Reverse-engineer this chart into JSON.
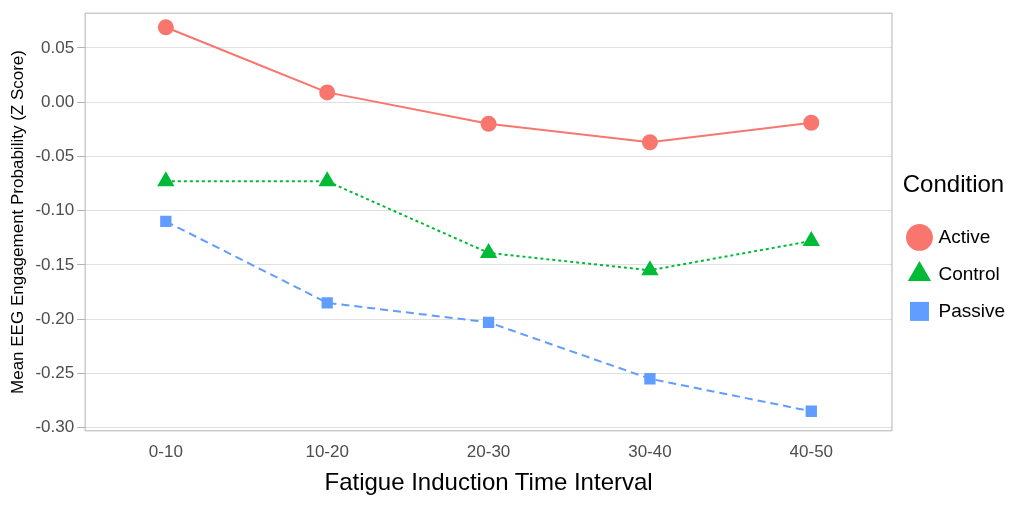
{
  "chart_data": {
    "type": "line",
    "xlabel": "Fatigue Induction Time Interval",
    "ylabel": "Mean EEG Engagement Probability (Z Score)",
    "legend_title": "Condition",
    "categories": [
      "0-10",
      "10-20",
      "20-30",
      "30-40",
      "40-50"
    ],
    "series": [
      {
        "name": "Active",
        "color": "#f8766d",
        "values": [
          0.069,
          0.009,
          -0.02,
          -0.037,
          -0.019
        ],
        "marker": "circle",
        "line_style": "solid"
      },
      {
        "name": "Control",
        "color": "#00ba38",
        "values": [
          -0.073,
          -0.073,
          -0.139,
          -0.155,
          -0.128
        ],
        "marker": "triangle",
        "line_style": "dotted"
      },
      {
        "name": "Passive",
        "color": "#619cff",
        "values": [
          -0.11,
          -0.185,
          -0.203,
          -0.255,
          -0.285
        ],
        "marker": "square",
        "line_style": "dashed"
      }
    ],
    "ylim": [
      -0.303,
      0.082
    ],
    "yticks": [
      {
        "value": 0.05,
        "label": "0.05"
      },
      {
        "value": 0,
        "label": "0.00"
      },
      {
        "value": -0.05,
        "label": "-0.05"
      },
      {
        "value": -0.1,
        "label": "-0.10"
      },
      {
        "value": -0.15,
        "label": "-0.15"
      },
      {
        "value": -0.2,
        "label": "-0.20"
      },
      {
        "value": -0.25,
        "label": "-0.25"
      },
      {
        "value": -0.3,
        "label": "-0.30"
      }
    ],
    "grid": "y",
    "legend": "right"
  }
}
